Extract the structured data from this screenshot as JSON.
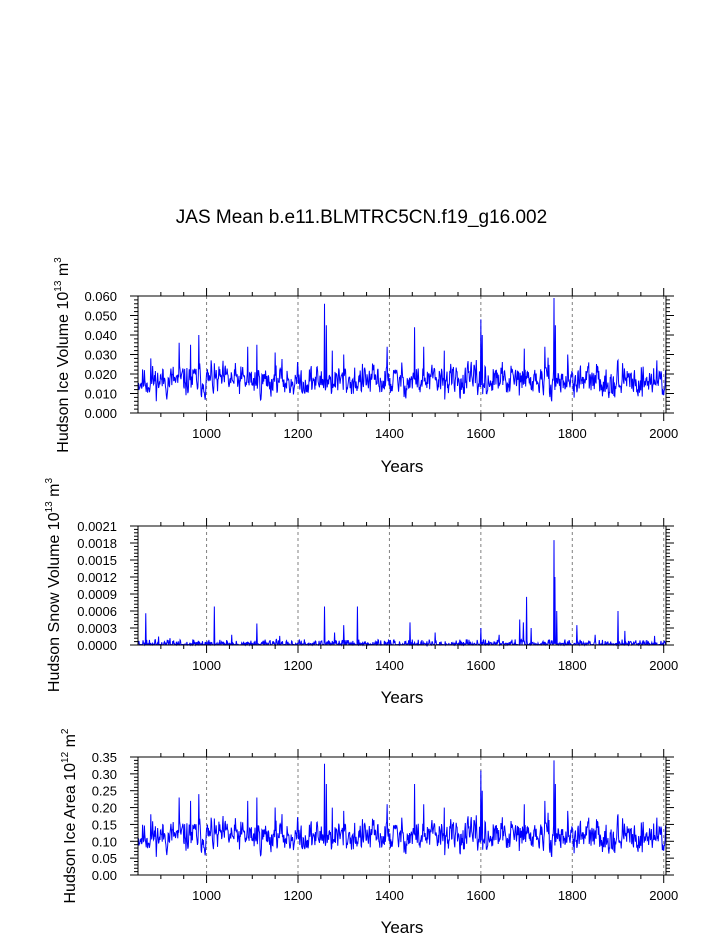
{
  "figure": {
    "title": "JAS Mean b.e11.BLMTRC5CN.f19_g16.002"
  },
  "colors": {
    "series": "#0000ff",
    "axes": "#000000",
    "reference_lines": "#808080"
  },
  "chart_data": [
    {
      "type": "line",
      "xlabel": "Years",
      "ylabel_main": "Hudson Ice Volume 10",
      "ylabel_exp": "13",
      "ylabel_unit": " m",
      "ylabel_unit_exp": "3",
      "xlim": [
        850,
        2005
      ],
      "ylim": [
        0,
        0.06
      ],
      "xticks": [
        1000,
        1200,
        1400,
        1600,
        1800,
        2000
      ],
      "xtick_labels": [
        "1000",
        "1200",
        "1400",
        "1600",
        "1800",
        "2000"
      ],
      "yticks": [
        0,
        0.01,
        0.02,
        0.03,
        0.04,
        0.05,
        0.06
      ],
      "ytick_labels": [
        "0.000",
        "0.010",
        "0.020",
        "0.030",
        "0.040",
        "0.050",
        "0.060"
      ],
      "reference_lines_x": [
        1000,
        1200,
        1400,
        1600,
        1800,
        2000
      ],
      "series": {
        "name": "Hudson Ice Volume",
        "x_start": 850,
        "x_end": 2005,
        "baseline": 0.0165,
        "noise": 0.0065,
        "floor": 0.004,
        "seed": 11,
        "spikes": [
          [
            878,
            0.028
          ],
          [
            940,
            0.036
          ],
          [
            965,
            0.035
          ],
          [
            983,
            0.04
          ],
          [
            1010,
            0.027
          ],
          [
            1090,
            0.034
          ],
          [
            1110,
            0.035
          ],
          [
            1150,
            0.031
          ],
          [
            1258,
            0.056
          ],
          [
            1262,
            0.045
          ],
          [
            1275,
            0.032
          ],
          [
            1300,
            0.03
          ],
          [
            1395,
            0.034
          ],
          [
            1455,
            0.044
          ],
          [
            1475,
            0.034
          ],
          [
            1520,
            0.032
          ],
          [
            1600,
            0.048
          ],
          [
            1603,
            0.04
          ],
          [
            1695,
            0.033
          ],
          [
            1740,
            0.034
          ],
          [
            1760,
            0.059
          ],
          [
            1763,
            0.045
          ],
          [
            1790,
            0.03
          ],
          [
            1900,
            0.027
          ],
          [
            1985,
            0.027
          ]
        ]
      }
    },
    {
      "type": "line",
      "xlabel": "Years",
      "ylabel_main": "Hudson Snow Volume 10",
      "ylabel_exp": "13",
      "ylabel_unit": " m",
      "ylabel_unit_exp": "3",
      "xlim": [
        850,
        2005
      ],
      "ylim": [
        0,
        0.0021
      ],
      "xticks": [
        1000,
        1200,
        1400,
        1600,
        1800,
        2000
      ],
      "xtick_labels": [
        "1000",
        "1200",
        "1400",
        "1600",
        "1800",
        "2000"
      ],
      "yticks": [
        0,
        0.0003,
        0.0006,
        0.0009,
        0.0012,
        0.0015,
        0.0018,
        0.0021
      ],
      "ytick_labels": [
        "0.0000",
        "0.0003",
        "0.0006",
        "0.0009",
        "0.0012",
        "0.0015",
        "0.0018",
        "0.0021"
      ],
      "reference_lines_x": [
        1000,
        1200,
        1400,
        1600,
        1800,
        2000
      ],
      "series": {
        "name": "Hudson Snow Volume",
        "x_start": 850,
        "x_end": 2005,
        "baseline": 2e-05,
        "noise": 4e-05,
        "floor": 0,
        "sparse": true,
        "seed": 23,
        "spikes": [
          [
            867,
            0.00056
          ],
          [
            895,
            0.00015
          ],
          [
            920,
            0.00012
          ],
          [
            1017,
            0.00068
          ],
          [
            1055,
            0.00018
          ],
          [
            1110,
            0.00038
          ],
          [
            1160,
            0.00016
          ],
          [
            1258,
            0.00068
          ],
          [
            1280,
            0.00022
          ],
          [
            1300,
            0.00035
          ],
          [
            1330,
            0.00068
          ],
          [
            1445,
            0.0004
          ],
          [
            1500,
            0.00022
          ],
          [
            1600,
            0.0003
          ],
          [
            1640,
            0.00018
          ],
          [
            1685,
            0.00045
          ],
          [
            1693,
            0.0004
          ],
          [
            1700,
            0.00085
          ],
          [
            1710,
            0.0003
          ],
          [
            1760,
            0.00185
          ],
          [
            1762,
            0.0012
          ],
          [
            1766,
            0.0006
          ],
          [
            1810,
            0.00035
          ],
          [
            1850,
            0.00018
          ],
          [
            1900,
            0.0006
          ],
          [
            1915,
            0.00025
          ],
          [
            1980,
            0.00016
          ]
        ]
      }
    },
    {
      "type": "line",
      "xlabel": "Years",
      "ylabel_main": "Hudson Ice Area 10",
      "ylabel_exp": "12",
      "ylabel_unit": " m",
      "ylabel_unit_exp": "2",
      "xlim": [
        850,
        2005
      ],
      "ylim": [
        0,
        0.35
      ],
      "xticks": [
        1000,
        1200,
        1400,
        1600,
        1800,
        2000
      ],
      "xtick_labels": [
        "1000",
        "1200",
        "1400",
        "1600",
        "1800",
        "2000"
      ],
      "yticks": [
        0,
        0.05,
        0.1,
        0.15,
        0.2,
        0.25,
        0.3,
        0.35
      ],
      "ytick_labels": [
        "0.00",
        "0.05",
        "0.10",
        "0.15",
        "0.20",
        "0.25",
        "0.30",
        "0.35"
      ],
      "reference_lines_x": [
        1000,
        1200,
        1400,
        1600,
        1800,
        2000
      ],
      "series": {
        "name": "Hudson Ice Area",
        "x_start": 850,
        "x_end": 2005,
        "baseline": 0.115,
        "noise": 0.038,
        "floor": 0.02,
        "seed": 11,
        "spikes": [
          [
            878,
            0.18
          ],
          [
            940,
            0.23
          ],
          [
            965,
            0.22
          ],
          [
            983,
            0.24
          ],
          [
            1010,
            0.17
          ],
          [
            1090,
            0.22
          ],
          [
            1110,
            0.23
          ],
          [
            1150,
            0.2
          ],
          [
            1258,
            0.33
          ],
          [
            1262,
            0.27
          ],
          [
            1275,
            0.2
          ],
          [
            1300,
            0.19
          ],
          [
            1395,
            0.21
          ],
          [
            1455,
            0.27
          ],
          [
            1475,
            0.21
          ],
          [
            1520,
            0.2
          ],
          [
            1600,
            0.31
          ],
          [
            1603,
            0.25
          ],
          [
            1695,
            0.21
          ],
          [
            1740,
            0.22
          ],
          [
            1760,
            0.34
          ],
          [
            1763,
            0.27
          ],
          [
            1790,
            0.19
          ],
          [
            1900,
            0.18
          ],
          [
            1985,
            0.17
          ]
        ]
      }
    }
  ]
}
